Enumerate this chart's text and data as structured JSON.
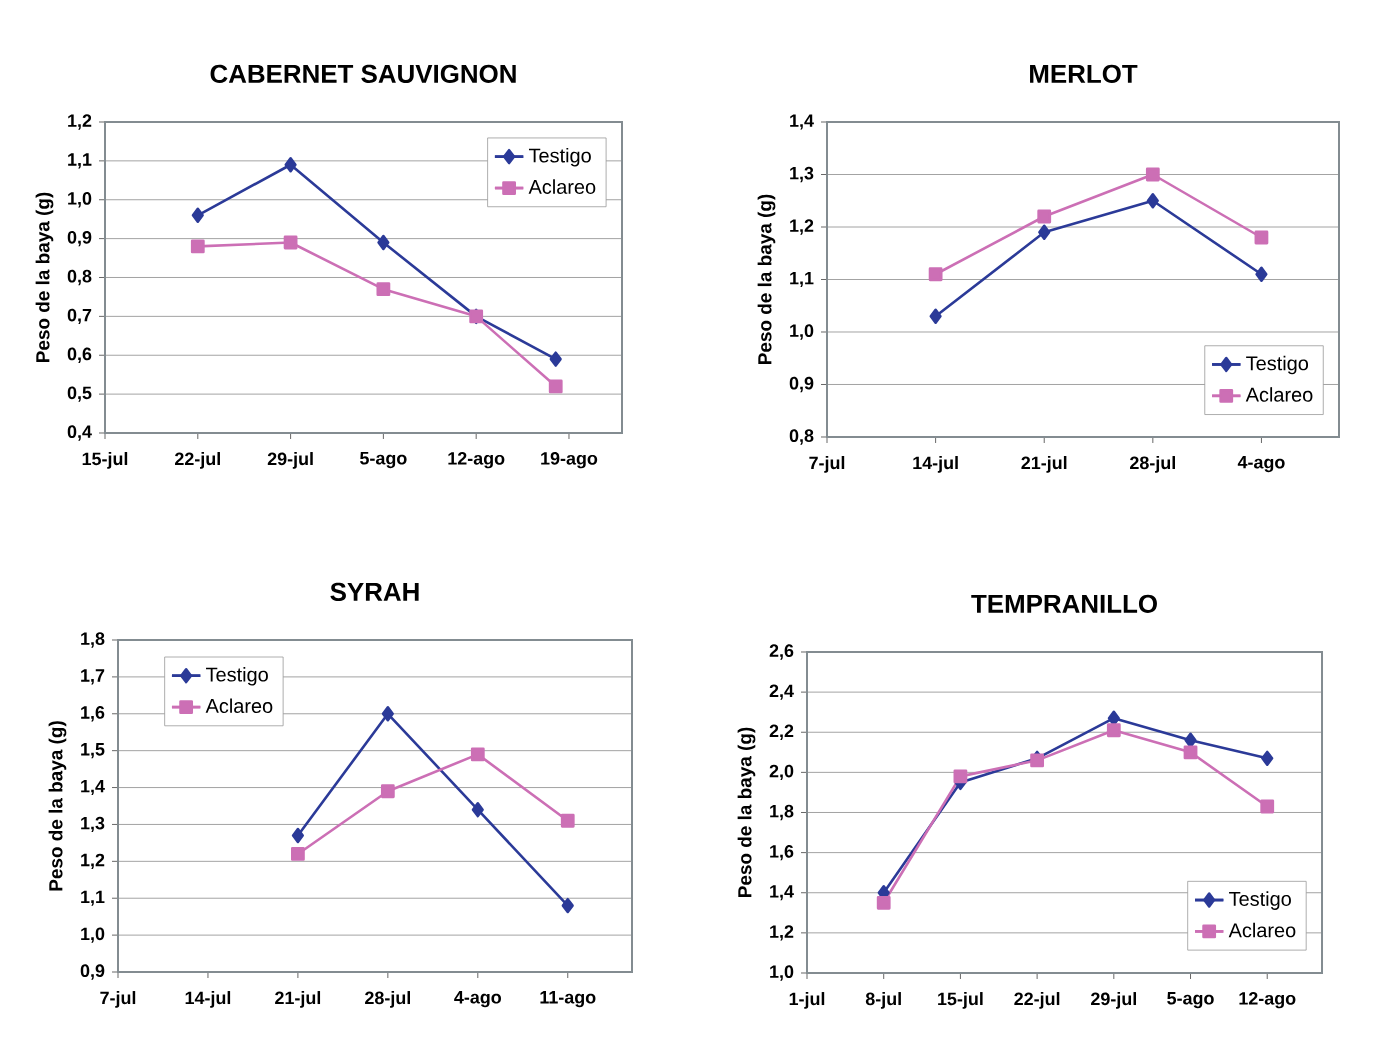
{
  "chart_data": [
    {
      "type": "line",
      "title": "CABERNET SAUVIGNON",
      "ylabel": "Peso de la baya (g)",
      "x": [
        "--07-22",
        "--07-29",
        "--08-05",
        "--08-12",
        "--08-18"
      ],
      "series": [
        {
          "name": "Testigo",
          "color": "#2b3a98",
          "marker": "diamond",
          "values": [
            0.96,
            1.09,
            0.89,
            0.7,
            0.59
          ]
        },
        {
          "name": "Aclareo",
          "color": "#cc6fb5",
          "marker": "square",
          "values": [
            0.88,
            0.89,
            0.77,
            0.7,
            0.52
          ]
        }
      ],
      "xlim": [
        "--07-15",
        "--08-23"
      ],
      "xticks": [
        {
          "value": "--07-15",
          "label": "15-jul"
        },
        {
          "value": "--07-22",
          "label": "22-jul"
        },
        {
          "value": "--07-29",
          "label": "29-jul"
        },
        {
          "value": "--08-05",
          "label": "5-ago"
        },
        {
          "value": "--08-12",
          "label": "12-ago"
        },
        {
          "value": "--08-19",
          "label": "19-ago"
        }
      ],
      "ylim": [
        0.4,
        1.2
      ],
      "yticks": [
        {
          "value": 0.4,
          "label": "0,4"
        },
        {
          "value": 0.5,
          "label": "0,5"
        },
        {
          "value": 0.6,
          "label": "0,6"
        },
        {
          "value": 0.7,
          "label": "0,7"
        },
        {
          "value": 0.8,
          "label": "0,8"
        },
        {
          "value": 0.9,
          "label": "0,9"
        },
        {
          "value": 1.0,
          "label": "1,0"
        },
        {
          "value": 1.1,
          "label": "1,1"
        },
        {
          "value": 1.2,
          "label": "1,2"
        }
      ],
      "grid": "y",
      "legend": "top right",
      "line_style": "solid"
    },
    {
      "type": "line",
      "title": "MERLOT",
      "ylabel": "Peso de la baya (g)",
      "x": [
        "--07-14",
        "--07-21",
        "--07-28",
        "--08-04"
      ],
      "series": [
        {
          "name": "Testigo",
          "color": "#2b3a98",
          "marker": "diamond",
          "values": [
            1.03,
            1.19,
            1.25,
            1.11
          ]
        },
        {
          "name": "Aclareo",
          "color": "#cc6fb5",
          "marker": "square",
          "values": [
            1.11,
            1.22,
            1.3,
            1.18
          ]
        }
      ],
      "xlim": [
        "--07-07",
        "--08-09"
      ],
      "xticks": [
        {
          "value": "--07-07",
          "label": "7-jul"
        },
        {
          "value": "--07-14",
          "label": "14-jul"
        },
        {
          "value": "--07-21",
          "label": "21-jul"
        },
        {
          "value": "--07-28",
          "label": "28-jul"
        },
        {
          "value": "--08-04",
          "label": "4-ago"
        }
      ],
      "ylim": [
        0.8,
        1.4
      ],
      "yticks": [
        {
          "value": 0.8,
          "label": "0,8"
        },
        {
          "value": 0.9,
          "label": "0,9"
        },
        {
          "value": 1.0,
          "label": "1,0"
        },
        {
          "value": 1.1,
          "label": "1,1"
        },
        {
          "value": 1.2,
          "label": "1,2"
        },
        {
          "value": 1.3,
          "label": "1,3"
        },
        {
          "value": 1.4,
          "label": "1,4"
        }
      ],
      "grid": "y",
      "legend": "bottom right",
      "line_style": "solid"
    },
    {
      "type": "line",
      "title": "SYRAH",
      "ylabel": "Peso de la baya (g)",
      "x": [
        "--07-21",
        "--07-28",
        "--08-04",
        "--08-11"
      ],
      "series": [
        {
          "name": "Testigo",
          "color": "#2b3a98",
          "marker": "diamond",
          "values": [
            1.27,
            1.6,
            1.34,
            1.08
          ]
        },
        {
          "name": "Aclareo",
          "color": "#cc6fb5",
          "marker": "square",
          "values": [
            1.22,
            1.39,
            1.49,
            1.31
          ]
        }
      ],
      "xlim": [
        "--07-07",
        "--08-16"
      ],
      "xticks": [
        {
          "value": "--07-07",
          "label": "7-jul"
        },
        {
          "value": "--07-14",
          "label": "14-jul"
        },
        {
          "value": "--07-21",
          "label": "21-jul"
        },
        {
          "value": "--07-28",
          "label": "28-jul"
        },
        {
          "value": "--08-04",
          "label": "4-ago"
        },
        {
          "value": "--08-11",
          "label": "11-ago"
        }
      ],
      "ylim": [
        0.9,
        1.8
      ],
      "yticks": [
        {
          "value": 0.9,
          "label": "0,9"
        },
        {
          "value": 1.0,
          "label": "1,0"
        },
        {
          "value": 1.1,
          "label": "1,1"
        },
        {
          "value": 1.2,
          "label": "1,2"
        },
        {
          "value": 1.3,
          "label": "1,3"
        },
        {
          "value": 1.4,
          "label": "1,4"
        },
        {
          "value": 1.5,
          "label": "1,5"
        },
        {
          "value": 1.6,
          "label": "1,6"
        },
        {
          "value": 1.7,
          "label": "1,7"
        },
        {
          "value": 1.8,
          "label": "1,8"
        }
      ],
      "grid": "y",
      "legend": "top left",
      "line_style": "solid"
    },
    {
      "type": "line",
      "title": "TEMPRANILLO",
      "ylabel": "Peso de la baya (g)",
      "x": [
        "--07-08",
        "--07-15",
        "--07-22",
        "--07-29",
        "--08-05",
        "--08-12"
      ],
      "series": [
        {
          "name": "Testigo",
          "color": "#2b3a98",
          "marker": "diamond",
          "values": [
            1.4,
            1.95,
            2.07,
            2.27,
            2.16,
            2.07
          ]
        },
        {
          "name": "Aclareo",
          "color": "#cc6fb5",
          "marker": "square",
          "values": [
            1.35,
            1.98,
            2.06,
            2.21,
            2.1,
            1.83
          ]
        }
      ],
      "xlim": [
        "--07-01",
        "--08-17"
      ],
      "xticks": [
        {
          "value": "--07-01",
          "label": "1-jul"
        },
        {
          "value": "--07-08",
          "label": "8-jul"
        },
        {
          "value": "--07-15",
          "label": "15-jul"
        },
        {
          "value": "--07-22",
          "label": "22-jul"
        },
        {
          "value": "--07-29",
          "label": "29-jul"
        },
        {
          "value": "--08-05",
          "label": "5-ago"
        },
        {
          "value": "--08-12",
          "label": "12-ago"
        }
      ],
      "ylim": [
        1.0,
        2.6
      ],
      "yticks": [
        {
          "value": 1.0,
          "label": "1,0"
        },
        {
          "value": 1.2,
          "label": "1,2"
        },
        {
          "value": 1.4,
          "label": "1,4"
        },
        {
          "value": 1.6,
          "label": "1,6"
        },
        {
          "value": 1.8,
          "label": "1,8"
        },
        {
          "value": 2.0,
          "label": "2,0"
        },
        {
          "value": 2.2,
          "label": "2,2"
        },
        {
          "value": 2.4,
          "label": "2,4"
        },
        {
          "value": 2.6,
          "label": "2,6"
        }
      ],
      "grid": "y",
      "legend": "bottom right",
      "line_style": "solid"
    }
  ]
}
